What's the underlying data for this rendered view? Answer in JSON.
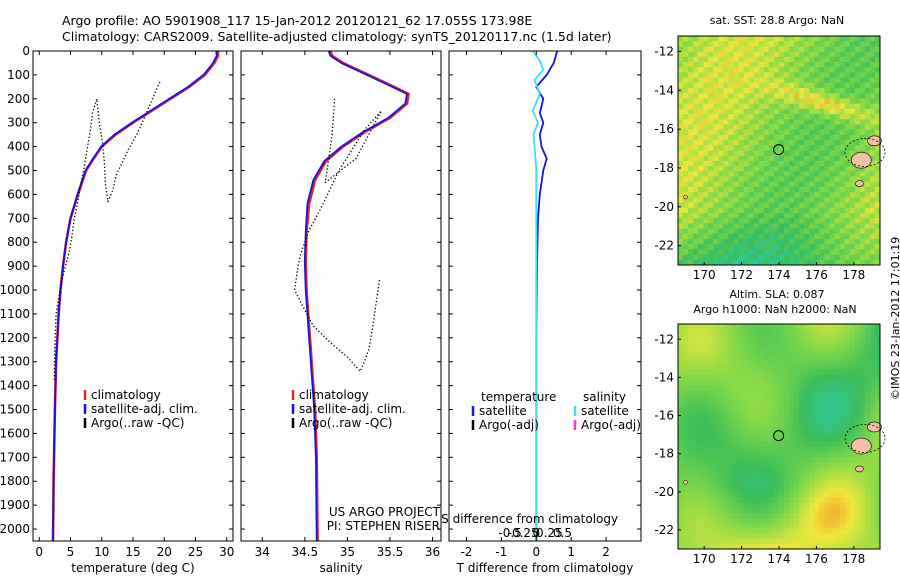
{
  "header": {
    "line1": "Argo profile: AO 5901908_117 15-Jan-2012 20120121_62 17.055S 173.98E",
    "line2": "Climatology: CARS2009. Satellite-adjusted climatology: synTS_20120117.nc (1.5d later)"
  },
  "credit": "©IMOS 23-Jan-2012 17:01:19",
  "colors": {
    "climatology": "#e8202a",
    "satellite": "#1515e0",
    "argo": "#000000",
    "sal_satellite": "#3fe0f0",
    "sal_argo": "#e040e0"
  },
  "chart_data": [
    {
      "id": "temperature",
      "type": "line",
      "xlabel": "temperature (deg C)",
      "ylabel": "",
      "xlim": [
        -1,
        31
      ],
      "ylim": [
        2050,
        0
      ],
      "xticks": [
        0,
        5,
        10,
        15,
        20,
        25,
        30
      ],
      "yticks": [
        0,
        100,
        200,
        300,
        400,
        500,
        600,
        700,
        800,
        900,
        1000,
        1100,
        1200,
        1300,
        1400,
        1500,
        1600,
        1700,
        1800,
        1900,
        2000
      ],
      "legend": [
        "climatology",
        "satellite-adj. clim.",
        "Argo(..raw -QC)"
      ],
      "series": [
        {
          "name": "climatology",
          "style": "solid",
          "color_key": "climatology",
          "x": [
            28.6,
            28.6,
            28.0,
            26.5,
            24.0,
            21.0,
            18.0,
            15.0,
            12.2,
            10.0,
            8.7,
            7.5,
            6.2,
            5.0,
            4.3,
            3.8,
            3.4,
            3.1,
            2.9,
            2.7,
            2.6,
            2.5,
            2.3,
            2.2
          ],
          "y": [
            0,
            20,
            50,
            100,
            150,
            200,
            250,
            300,
            350,
            400,
            450,
            500,
            600,
            700,
            800,
            900,
            1000,
            1100,
            1200,
            1300,
            1400,
            1500,
            1800,
            2050
          ]
        },
        {
          "name": "satellite-adj. clim.",
          "style": "solid",
          "color_key": "satellite",
          "x": [
            28.3,
            28.4,
            27.8,
            26.3,
            23.8,
            20.8,
            17.8,
            14.8,
            12.0,
            9.9,
            8.6,
            7.4,
            6.1,
            5.0,
            4.3,
            3.8,
            3.4,
            3.1,
            2.9,
            2.7,
            2.6,
            2.5,
            2.3,
            2.2
          ],
          "y": [
            0,
            20,
            50,
            100,
            150,
            200,
            250,
            300,
            350,
            400,
            450,
            500,
            600,
            700,
            800,
            900,
            1000,
            1100,
            1200,
            1300,
            1400,
            1500,
            1800,
            2050
          ]
        },
        {
          "name": "Argo(..raw -QC)",
          "style": "dotted",
          "color_key": "argo",
          "x": [
            19.3,
            18.6,
            17.8,
            16.8,
            15.6,
            14.3,
            13.2,
            12.3,
            11.8,
            11.0,
            10.6,
            10.4,
            10.1,
            9.6,
            9.2,
            8.5,
            8.2,
            7.6,
            7.1,
            6.6,
            6.1,
            5.6,
            5.2,
            4.8,
            4.2,
            3.6,
            3.2,
            2.7,
            2.5,
            2.4
          ],
          "y": [
            130,
            170,
            220,
            280,
            350,
            410,
            470,
            520,
            580,
            630,
            560,
            460,
            380,
            300,
            200,
            260,
            330,
            420,
            500,
            560,
            640,
            700,
            780,
            840,
            900,
            960,
            1020,
            1100,
            1220,
            1380
          ]
        }
      ]
    },
    {
      "id": "salinity",
      "type": "line",
      "xlabel": "salinity",
      "ylabel": "",
      "xlim": [
        33.75,
        36.1
      ],
      "ylim": [
        2050,
        0
      ],
      "xticks": [
        34,
        34.5,
        35,
        35.5,
        36
      ],
      "legend": [
        "climatology",
        "satellite-adj. clim.",
        "Argo(..raw -QC)"
      ],
      "annotation": [
        "US ARGO PROJECT",
        "PI: STEPHEN RISER"
      ],
      "series": [
        {
          "name": "climatology",
          "style": "solid",
          "color_key": "climatology",
          "x": [
            34.8,
            34.82,
            34.95,
            35.25,
            35.55,
            35.72,
            35.7,
            35.5,
            35.2,
            34.95,
            34.75,
            34.62,
            34.55,
            34.52,
            34.51,
            34.52,
            34.54,
            34.56,
            34.58,
            34.6,
            34.62,
            34.64,
            34.65
          ],
          "y": [
            0,
            20,
            50,
            100,
            150,
            180,
            220,
            280,
            340,
            400,
            460,
            540,
            640,
            760,
            880,
            1000,
            1100,
            1200,
            1300,
            1400,
            1500,
            1700,
            2050
          ]
        },
        {
          "name": "satellite-adj. clim.",
          "style": "solid",
          "color_key": "satellite",
          "x": [
            34.78,
            34.8,
            34.93,
            35.23,
            35.53,
            35.7,
            35.68,
            35.48,
            35.18,
            34.93,
            34.73,
            34.6,
            34.53,
            34.51,
            34.5,
            34.51,
            34.53,
            34.55,
            34.57,
            34.59,
            34.61,
            34.63,
            34.64
          ],
          "y": [
            0,
            20,
            50,
            100,
            150,
            180,
            220,
            280,
            340,
            400,
            460,
            540,
            640,
            760,
            880,
            1000,
            1100,
            1200,
            1300,
            1400,
            1500,
            1700,
            2050
          ]
        },
        {
          "name": "Argo(..raw -QC)",
          "style": "dotted",
          "color_key": "argo",
          "x": [
            34.85,
            34.84,
            34.83,
            34.82,
            34.8,
            34.78,
            34.76,
            34.74,
            35.1,
            35.25,
            35.4,
            35.2,
            34.9,
            34.7,
            34.55,
            34.5,
            34.45,
            34.42,
            34.4,
            34.38,
            34.45,
            34.6,
            34.8,
            35.0,
            35.15,
            35.2,
            35.25,
            35.3,
            35.38
          ],
          "y": [
            200,
            250,
            300,
            350,
            400,
            450,
            500,
            550,
            450,
            350,
            250,
            330,
            500,
            650,
            750,
            800,
            850,
            900,
            950,
            1000,
            1050,
            1150,
            1220,
            1280,
            1340,
            1300,
            1250,
            1150,
            950
          ]
        }
      ]
    },
    {
      "id": "difference",
      "type": "line",
      "xlabel": "T difference from climatology",
      "xlabel_top": "S difference from climatology",
      "xlim": [
        -2.5,
        3
      ],
      "ylim": [
        2050,
        0
      ],
      "xticks": [
        -2,
        -1,
        0,
        1,
        2
      ],
      "xticks_top": [
        -0.5,
        -0.25,
        0,
        0.25,
        0.5
      ],
      "legend_temperature": {
        "title": "temperature",
        "items": [
          "satellite",
          "Argo(-adj)"
        ]
      },
      "legend_salinity": {
        "title": "salinity",
        "items": [
          "satellite",
          "Argo(-adj)"
        ]
      },
      "series": [
        {
          "name": "satellite",
          "style": "solid",
          "color_key": "satellite",
          "x": [
            0.6,
            0.5,
            0.3,
            0.0,
            0.2,
            0.1,
            0.2,
            0.1,
            0.15,
            0.3,
            0.2,
            0.1,
            0.05,
            0.02,
            0.0,
            0.0
          ],
          "y": [
            0,
            50,
            100,
            150,
            200,
            260,
            300,
            350,
            400,
            450,
            500,
            600,
            700,
            900,
            1200,
            2050
          ]
        },
        {
          "name": "satellite (salinity)",
          "style": "solid",
          "color_key": "sal_satellite",
          "x": [
            -0.1,
            0.1,
            0.2,
            -0.05,
            0.1,
            -0.1,
            0.05,
            -0.08,
            -0.05,
            0.0,
            0.0,
            0.0,
            0.0
          ],
          "y": [
            0,
            40,
            80,
            120,
            180,
            250,
            300,
            350,
            400,
            500,
            700,
            1000,
            2050
          ]
        }
      ]
    }
  ],
  "maps": [
    {
      "id": "sst",
      "title": "sat. SST: 28.8 Argo: NaN",
      "title2": "",
      "xticks": [
        170,
        172,
        174,
        176,
        178
      ],
      "yticks": [
        -12,
        -14,
        -16,
        -18,
        -20,
        -22
      ],
      "xlim": [
        168.6,
        179.4
      ],
      "ylim": [
        -23,
        -11.2
      ]
    },
    {
      "id": "sla",
      "title": "Altim. SLA: 0.087",
      "title2": "Argo h1000: NaN h2000: NaN",
      "xticks": [
        170,
        172,
        174,
        176,
        178
      ],
      "yticks": [
        -12,
        -14,
        -16,
        -18,
        -20,
        -22
      ],
      "xlim": [
        168.6,
        179.4
      ],
      "ylim": [
        -23,
        -11.2
      ]
    }
  ]
}
